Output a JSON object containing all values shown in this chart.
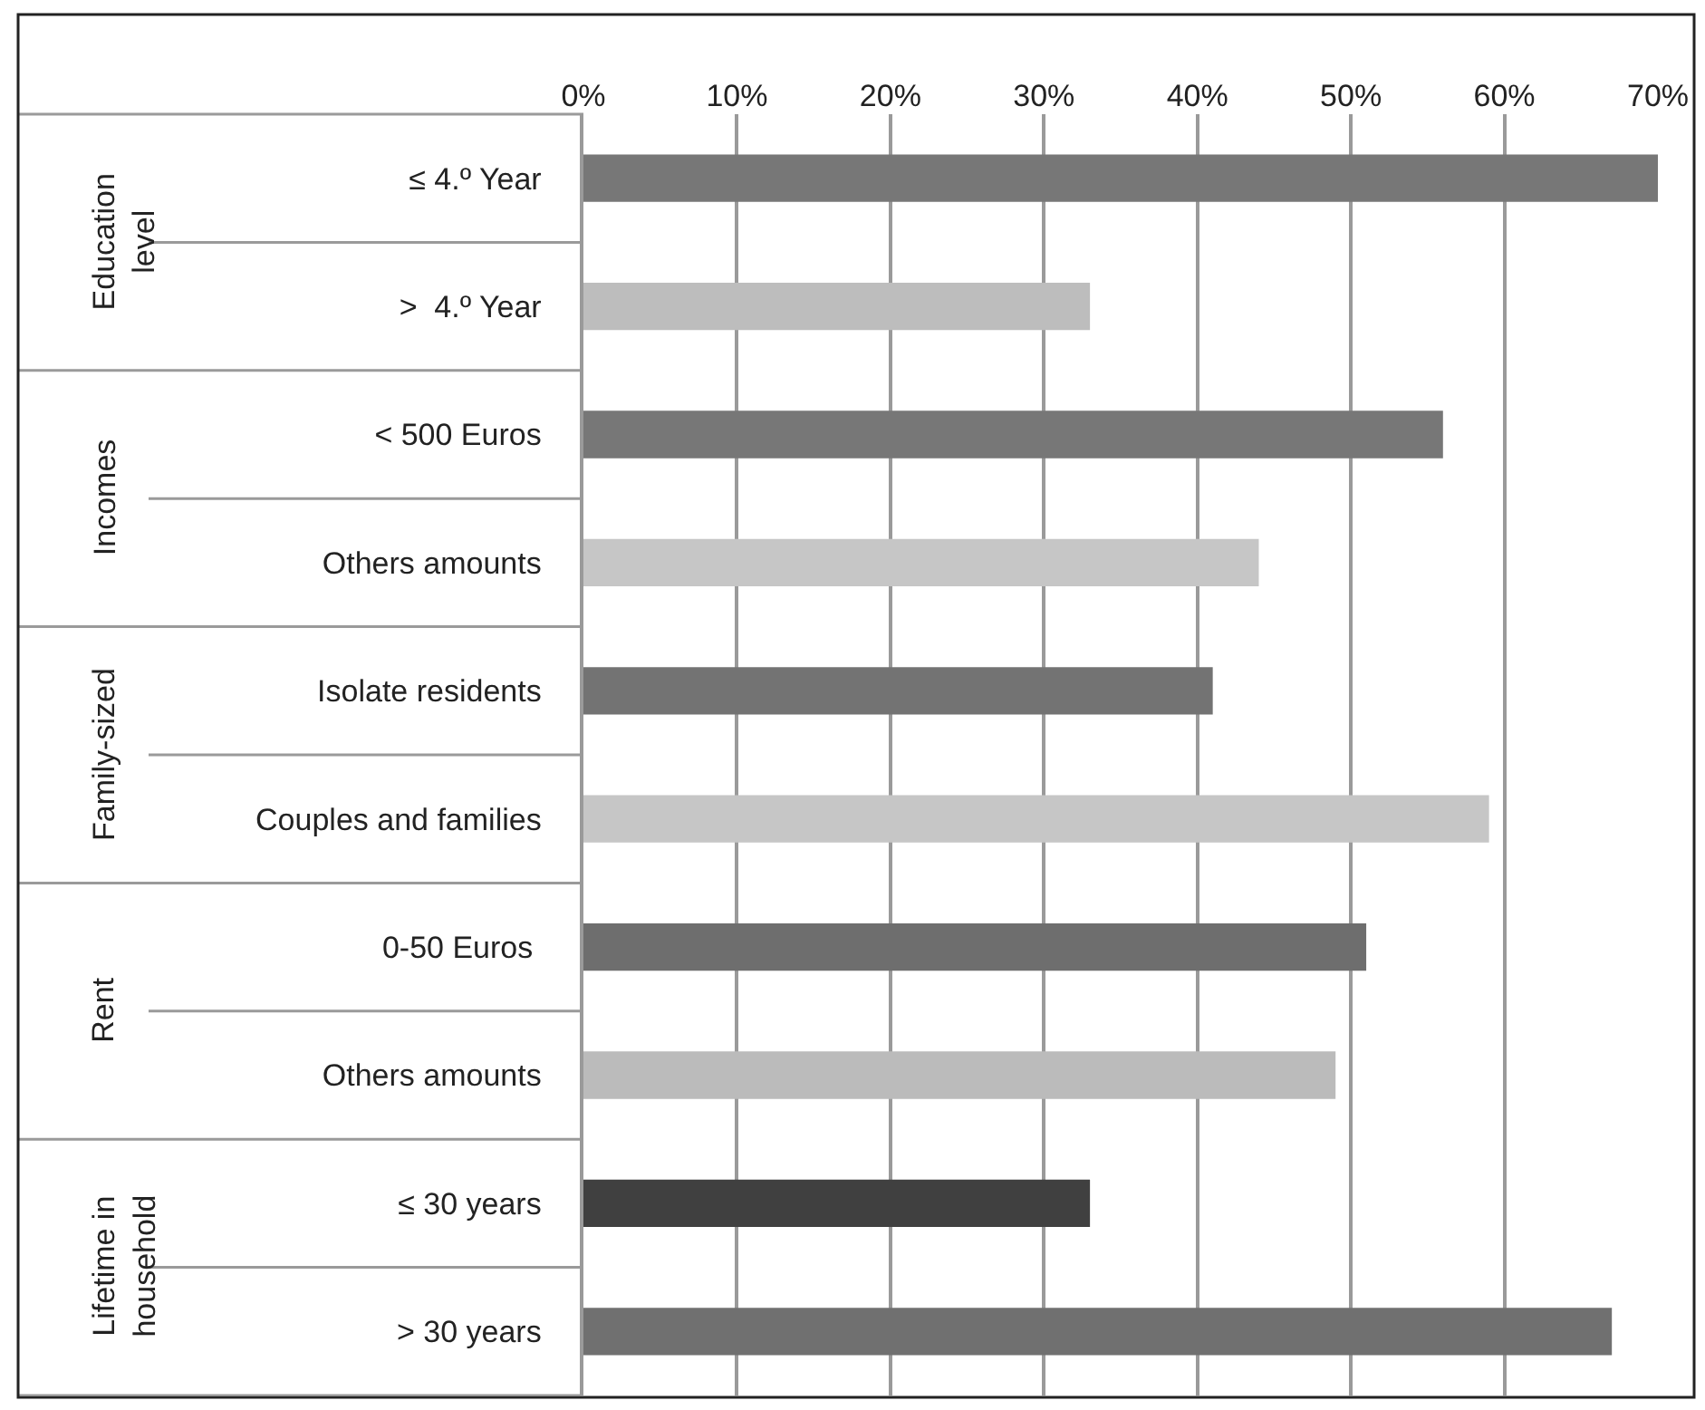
{
  "chart_data": {
    "type": "bar",
    "orientation": "horizontal",
    "categories": [
      "≤ 4.º Year",
      ">  4.º Year",
      "< 500 Euros",
      "Others amounts",
      "Isolate residents",
      "Couples and families",
      "0-50 Euros ",
      "Others amounts",
      "≤ 30 years",
      "> 30 years"
    ],
    "values": [
      70,
      33,
      56,
      44,
      41,
      59,
      51,
      49,
      33,
      67
    ],
    "colors": [
      "#777777",
      "#bdbdbd",
      "#777777",
      "#c6c6c6",
      "#737373",
      "#c6c6c6",
      "#6e6e6e",
      "#bbbbbb",
      "#404040",
      "#707070"
    ],
    "annotations": [
      "Education\nlevel",
      "Incomes",
      "Family-sized",
      "Rent",
      "Lifetime in\nhousehold"
    ],
    "xlim": [
      0,
      70
    ],
    "xticks": [
      {
        "value": 0,
        "label": "0%"
      },
      {
        "value": 10,
        "label": "10%"
      },
      {
        "value": 20,
        "label": "20%"
      },
      {
        "value": 30,
        "label": "30%"
      },
      {
        "value": 40,
        "label": "40%"
      },
      {
        "value": 50,
        "label": "50%"
      },
      {
        "value": 60,
        "label": "60%"
      },
      {
        "value": 70,
        "label": "70%"
      }
    ],
    "grid": "x"
  }
}
